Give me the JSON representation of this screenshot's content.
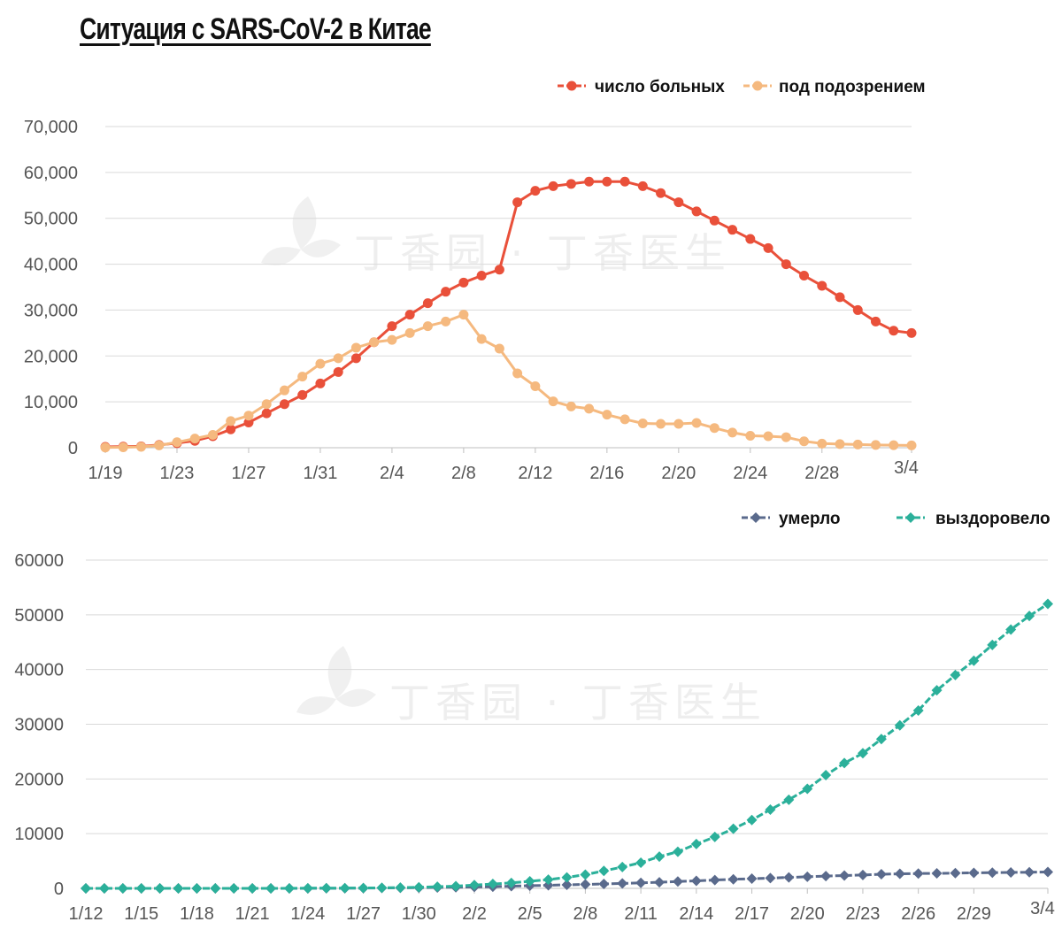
{
  "title": "Ситуация с SARS-CoV-2 в Китае",
  "watermark": "丁香园 · 丁香医生",
  "chart_data": [
    {
      "type": "line",
      "ylim": [
        0,
        70000
      ],
      "yticks": [
        0,
        10000,
        20000,
        30000,
        40000,
        50000,
        60000,
        70000
      ],
      "ytick_labels": [
        "0",
        "10,000",
        "20,000",
        "30,000",
        "40,000",
        "50,000",
        "60,000",
        "70,000"
      ],
      "x_start": "1/19",
      "xtick_labels": [
        "1/19",
        "1/23",
        "1/27",
        "1/31",
        "2/4",
        "2/8",
        "2/12",
        "2/16",
        "2/20",
        "2/24",
        "2/28",
        "3/4"
      ],
      "xtick_index": [
        0,
        4,
        8,
        12,
        16,
        20,
        24,
        28,
        32,
        36,
        40,
        45
      ],
      "grid": true,
      "legend_position": "top-right",
      "series": [
        {
          "name": "число больных",
          "color": "#e9503a",
          "marker": "circle",
          "values": [
            200,
            250,
            300,
            600,
            1000,
            1500,
            2500,
            4000,
            5500,
            7500,
            9500,
            11500,
            14000,
            16500,
            19500,
            23000,
            26500,
            29000,
            31500,
            34000,
            36000,
            37500,
            38800,
            53500,
            56000,
            57000,
            57500,
            58000,
            58000,
            58000,
            57000,
            55500,
            53500,
            51500,
            49500,
            47500,
            45500,
            43500,
            40000,
            37500,
            35300,
            32800,
            30000,
            27500,
            25500,
            25000
          ]
        },
        {
          "name": "под подозрением",
          "color": "#f5b97f",
          "marker": "circle",
          "values": [
            50,
            100,
            200,
            500,
            1200,
            2000,
            2800,
            5800,
            7000,
            9500,
            12500,
            15500,
            18300,
            19500,
            21800,
            23000,
            23500,
            25000,
            26500,
            27500,
            29000,
            23700,
            21600,
            16200,
            13400,
            10100,
            9000,
            8500,
            7200,
            6200,
            5300,
            5200,
            5200,
            5400,
            4300,
            3300,
            2600,
            2500,
            2300,
            1400,
            900,
            800,
            700,
            600,
            550,
            500
          ]
        }
      ]
    },
    {
      "type": "line",
      "ylim": [
        0,
        60000
      ],
      "yticks": [
        0,
        10000,
        20000,
        30000,
        40000,
        50000,
        60000
      ],
      "ytick_labels": [
        "0",
        "10000",
        "20000",
        "30000",
        "40000",
        "50000",
        "60000"
      ],
      "x_start": "1/12",
      "xtick_labels": [
        "1/12",
        "1/15",
        "1/18",
        "1/21",
        "1/24",
        "1/27",
        "1/30",
        "2/2",
        "2/5",
        "2/8",
        "2/11",
        "2/14",
        "2/17",
        "2/20",
        "2/23",
        "2/26",
        "2/29",
        "3/4"
      ],
      "xtick_index": [
        0,
        3,
        6,
        9,
        12,
        15,
        18,
        21,
        24,
        27,
        30,
        33,
        36,
        39,
        42,
        45,
        48,
        52
      ],
      "grid": true,
      "legend_position": "top-right",
      "series": [
        {
          "name": "умерло",
          "color": "#5a6a8c",
          "marker": "diamond",
          "values": [
            0,
            0,
            0,
            0,
            0,
            0,
            0,
            0,
            0,
            0,
            0,
            5,
            10,
            20,
            30,
            50,
            80,
            100,
            130,
            170,
            210,
            260,
            300,
            400,
            490,
            560,
            640,
            720,
            810,
            910,
            1010,
            1110,
            1260,
            1380,
            1520,
            1660,
            1770,
            1870,
            2000,
            2120,
            2240,
            2340,
            2440,
            2590,
            2660,
            2710,
            2740,
            2790,
            2840,
            2880,
            2910,
            2950,
            3000
          ]
        },
        {
          "name": "выздоровело",
          "color": "#2bb09a",
          "marker": "diamond",
          "values": [
            0,
            0,
            0,
            0,
            0,
            0,
            0,
            0,
            0,
            0,
            0,
            10,
            30,
            40,
            50,
            60,
            100,
            150,
            200,
            300,
            400,
            600,
            800,
            1000,
            1300,
            1600,
            2000,
            2500,
            3200,
            3900,
            4700,
            5800,
            6700,
            8100,
            9400,
            10900,
            12500,
            14400,
            16200,
            18200,
            20700,
            22900,
            24700,
            27300,
            29800,
            32500,
            36200,
            39000,
            41600,
            44500,
            47300,
            49800,
            52000
          ]
        }
      ]
    }
  ]
}
